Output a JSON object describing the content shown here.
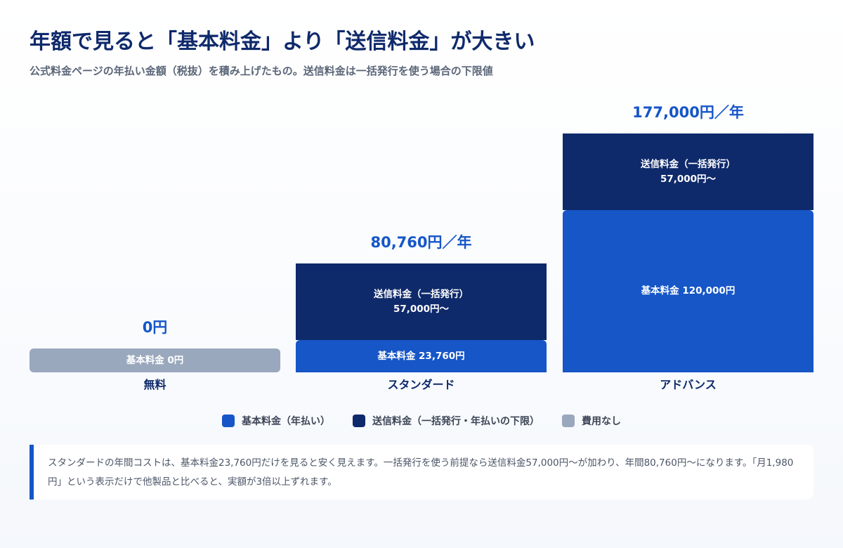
{
  "header": {
    "title": "年額で見ると「基本料金」より「送信料金」が大きい",
    "subtitle": "公式料金ページの年払い金額（税抜）を積み上げたもの。送信料金は一括発行を使う場合の下限値"
  },
  "colors": {
    "base": "#1656c7",
    "sending": "#0f2a6b",
    "free": "#9aa8bd",
    "total_text": "#1656c7"
  },
  "chart_data": {
    "type": "bar",
    "stacked": true,
    "title": "年額で見ると「基本料金」より「送信料金」が大きい",
    "subtitle": "公式料金ページの年払い金額（税抜）を積み上げたもの。送信料金は一括発行を使う場合の下限値",
    "categories": [
      "無料",
      "スタンダード",
      "アドバンス"
    ],
    "series": [
      {
        "name": "基本料金（年払い）",
        "values": [
          0,
          23760,
          120000
        ],
        "labels": [
          "基本料金 0円",
          "基本料金 23,760円",
          "基本料金 120,000円"
        ]
      },
      {
        "name": "送信料金（一括発行・年払いの下限）",
        "values": [
          0,
          57000,
          57000
        ],
        "labels": [
          "",
          "送信料金（一括発行）\n57,000円〜",
          "送信料金（一括発行）\n57,000円〜"
        ]
      }
    ],
    "totals": [
      0,
      80760,
      177000
    ],
    "total_labels": [
      "0円",
      "80,760円／年",
      "177,000円／年"
    ],
    "ylim": [
      0,
      177000
    ],
    "grid": false,
    "legend": {
      "position": "bottom",
      "entries": [
        "基本料金（年払い）",
        "送信料金（一括発行・年払いの下限）",
        "費用なし"
      ]
    }
  },
  "note": {
    "text": "スタンダードの年間コストは、基本料金23,760円だけを見ると安く見えます。一括発行を使う前提なら送信料金57,000円〜が加わり、年間80,760円〜になります。「月1,980円」という表示だけで他製品と比べると、実額が3倍以上ずれます。"
  }
}
